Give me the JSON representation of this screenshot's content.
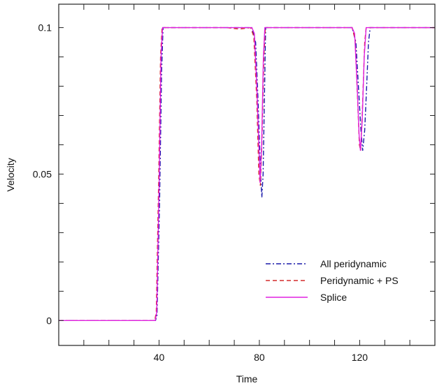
{
  "chart_data": {
    "type": "line",
    "title": "",
    "xlabel": "Time",
    "ylabel": "Velocity",
    "xlim": [
      0,
      150
    ],
    "ylim": [
      -0.0085,
      0.108
    ],
    "grid": false,
    "legend_position": "bottom-right",
    "x_ticks": [
      {
        "value": 40,
        "label": "40"
      },
      {
        "value": 80,
        "label": "80"
      },
      {
        "value": 120,
        "label": "120"
      }
    ],
    "y_ticks": [
      {
        "value": 0,
        "label": "0"
      },
      {
        "value": 0.05,
        "label": "0.05"
      },
      {
        "value": 0.1,
        "label": "0.1"
      }
    ],
    "series": [
      {
        "name": "All peridynamic",
        "color": "#1a1aaa",
        "dash": "dashdot",
        "points": [
          [
            0,
            0
          ],
          [
            38.6,
            0
          ],
          [
            39.2,
            0.002
          ],
          [
            40.2,
            0.04
          ],
          [
            41,
            0.085
          ],
          [
            41.6,
            0.1
          ],
          [
            77,
            0.1
          ],
          [
            78.5,
            0.095
          ],
          [
            79.5,
            0.075
          ],
          [
            80.5,
            0.05
          ],
          [
            81,
            0.042
          ],
          [
            81.5,
            0.05
          ],
          [
            82,
            0.075
          ],
          [
            82.5,
            0.1
          ],
          [
            117,
            0.1
          ],
          [
            118.5,
            0.095
          ],
          [
            119.5,
            0.08
          ],
          [
            120.5,
            0.065
          ],
          [
            121.2,
            0.058
          ],
          [
            122,
            0.065
          ],
          [
            122.8,
            0.08
          ],
          [
            123.5,
            0.095
          ],
          [
            124.2,
            0.1
          ],
          [
            150,
            0.1
          ]
        ]
      },
      {
        "name": "Peridynamic + PS",
        "color": "#d42a2a",
        "dash": "dashed",
        "points": [
          [
            0,
            0
          ],
          [
            38.3,
            0
          ],
          [
            38.9,
            0.003
          ],
          [
            39.8,
            0.045
          ],
          [
            40.6,
            0.09
          ],
          [
            41.2,
            0.1
          ],
          [
            67,
            0.1
          ],
          [
            72,
            0.0995
          ],
          [
            76.5,
            0.1
          ],
          [
            77.8,
            0.097
          ],
          [
            79,
            0.075
          ],
          [
            79.8,
            0.05
          ],
          [
            80.4,
            0.046
          ],
          [
            81,
            0.06
          ],
          [
            81.8,
            0.09
          ],
          [
            82.4,
            0.1
          ],
          [
            117,
            0.1
          ],
          [
            118.2,
            0.096
          ],
          [
            119.2,
            0.075
          ],
          [
            119.9,
            0.06
          ],
          [
            120.4,
            0.058
          ],
          [
            121,
            0.07
          ],
          [
            122,
            0.095
          ],
          [
            122.6,
            0.1
          ],
          [
            150,
            0.1
          ]
        ]
      },
      {
        "name": "Splice",
        "color": "#e020e0",
        "dash": "solid",
        "points": [
          [
            0,
            0
          ],
          [
            38.5,
            0
          ],
          [
            39.1,
            0.003
          ],
          [
            40,
            0.045
          ],
          [
            40.8,
            0.09
          ],
          [
            41.4,
            0.1
          ],
          [
            77,
            0.1
          ],
          [
            78,
            0.098
          ],
          [
            79,
            0.08
          ],
          [
            79.8,
            0.06
          ],
          [
            80.3,
            0.047
          ],
          [
            80.9,
            0.06
          ],
          [
            81.6,
            0.09
          ],
          [
            82.2,
            0.1
          ],
          [
            117,
            0.1
          ],
          [
            118,
            0.098
          ],
          [
            119,
            0.08
          ],
          [
            119.8,
            0.063
          ],
          [
            120.3,
            0.058
          ],
          [
            121,
            0.068
          ],
          [
            121.8,
            0.09
          ],
          [
            122.6,
            0.1
          ],
          [
            150,
            0.1
          ]
        ]
      }
    ]
  }
}
